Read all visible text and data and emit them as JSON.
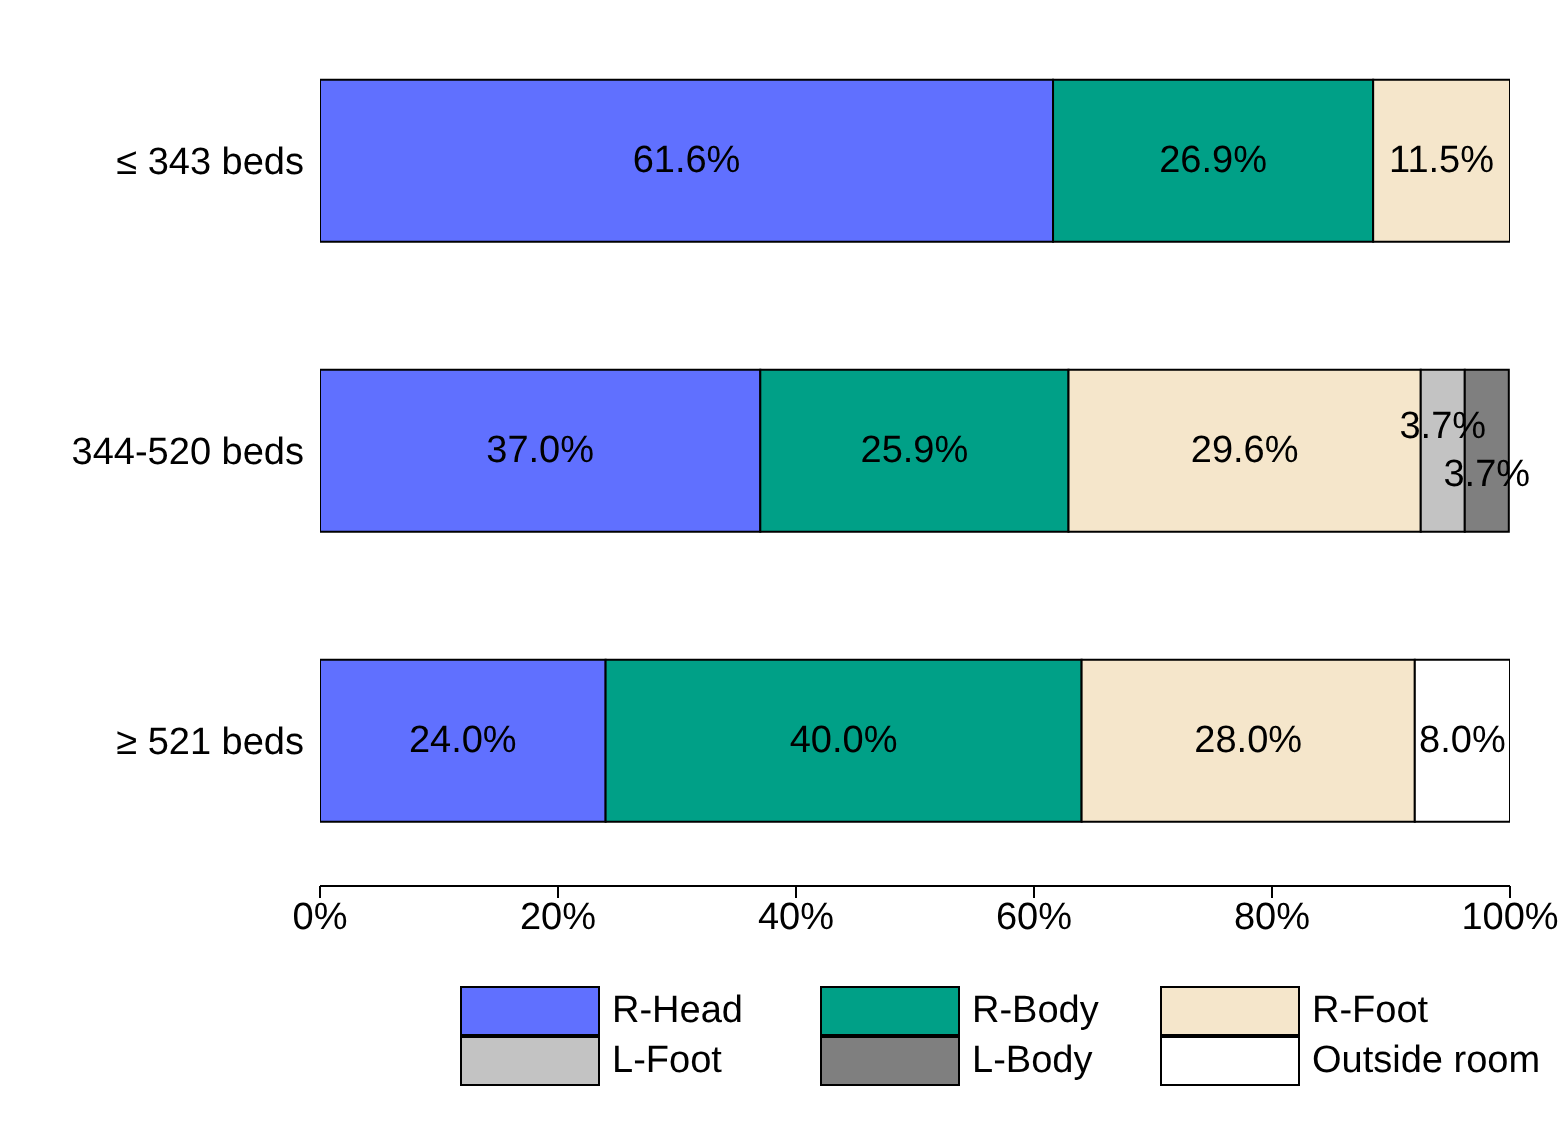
{
  "chart_data": {
    "type": "bar",
    "orientation": "horizontal",
    "stacked": true,
    "categories": [
      "≤ 343  beds",
      "344-520 beds",
      "≥ 521 beds"
    ],
    "series": [
      {
        "name": "R-Head",
        "color": "#6070ff",
        "values": [
          61.6,
          37.0,
          24.0
        ],
        "value_labels": [
          "61.6%",
          "37.0%",
          "24.0%"
        ]
      },
      {
        "name": "R-Body",
        "color": "#00a087",
        "values": [
          26.9,
          25.9,
          40.0
        ],
        "value_labels": [
          "26.9%",
          "25.9%",
          "40.0%"
        ]
      },
      {
        "name": "R-Foot",
        "color": "#f5e6cb",
        "values": [
          11.5,
          29.6,
          28.0
        ],
        "value_labels": [
          "11.5%",
          "29.6%",
          "28.0%"
        ]
      },
      {
        "name": "L-Foot",
        "color": "#c3c3c3",
        "values": [
          null,
          3.7,
          null
        ],
        "value_labels": [
          null,
          "3.7%",
          null
        ]
      },
      {
        "name": "L-Body",
        "color": "#7f7f7f",
        "values": [
          null,
          3.7,
          null
        ],
        "value_labels": [
          null,
          "3.7%",
          null
        ]
      },
      {
        "name": "Outside room",
        "color": "#ffffff",
        "values": [
          null,
          null,
          8.0
        ],
        "value_labels": [
          null,
          null,
          "8.0%"
        ]
      }
    ],
    "xlim": [
      0,
      100
    ],
    "xticks": [
      {
        "value": 0,
        "label": "0%"
      },
      {
        "value": 20,
        "label": "20%"
      },
      {
        "value": 40,
        "label": "40%"
      },
      {
        "value": 60,
        "label": "60%"
      },
      {
        "value": 80,
        "label": "80%"
      },
      {
        "value": 100,
        "label": "100%"
      }
    ],
    "grid": false,
    "legend": "bottom"
  }
}
